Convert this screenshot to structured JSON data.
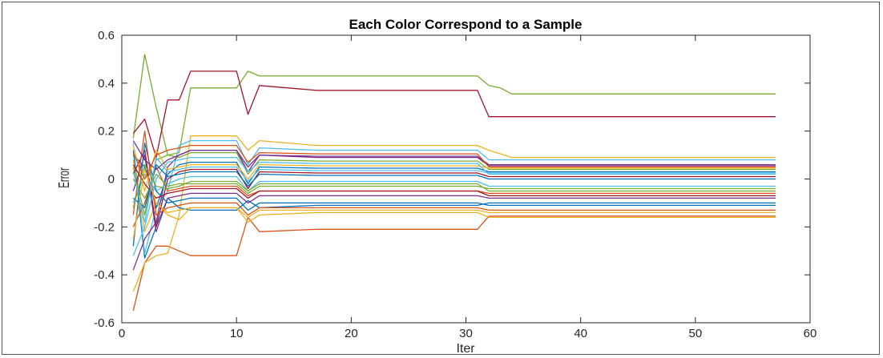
{
  "chart_data": {
    "type": "line",
    "title": "Each Color Correspond to a Sample",
    "xlabel": "Iter",
    "ylabel": "Error",
    "xlim": [
      0,
      60
    ],
    "ylim": [
      -0.6,
      0.6
    ],
    "xticks": [
      0,
      10,
      20,
      30,
      40,
      50,
      60
    ],
    "yticks": [
      -0.6,
      -0.4,
      -0.2,
      0,
      0.2,
      0.4,
      0.6
    ],
    "grid": false,
    "legend": "none",
    "axis_color": "#262626",
    "colors": [
      "#0072BD",
      "#D95319",
      "#EDB120",
      "#7E2F8E",
      "#77AC30",
      "#4DBEEE",
      "#A2142F"
    ],
    "series": [
      {
        "color": "#77AC30",
        "x": [
          1,
          2,
          3,
          4,
          5,
          6,
          10,
          11,
          12,
          17,
          31,
          32,
          33,
          34,
          57
        ],
        "y": [
          0.17,
          0.52,
          0.3,
          0.1,
          0.11,
          0.38,
          0.38,
          0.45,
          0.43,
          0.43,
          0.43,
          0.39,
          0.38,
          0.355,
          0.355
        ]
      },
      {
        "color": "#A2142F",
        "x": [
          1,
          2,
          3,
          4,
          5,
          6,
          10,
          11,
          12,
          17,
          31,
          32,
          57
        ],
        "y": [
          0.19,
          0.25,
          0.09,
          0.33,
          0.33,
          0.45,
          0.45,
          0.27,
          0.39,
          0.37,
          0.37,
          0.26,
          0.26
        ]
      },
      {
        "color": "#D95319",
        "x": [
          1,
          2,
          3,
          4,
          5,
          6,
          10,
          11,
          12,
          17,
          31,
          32,
          57
        ],
        "y": [
          -0.55,
          -0.35,
          -0.28,
          -0.28,
          -0.3,
          -0.32,
          -0.32,
          -0.16,
          -0.22,
          -0.21,
          -0.21,
          -0.155,
          -0.155
        ]
      },
      {
        "color": "#EDB120",
        "x": [
          1,
          2,
          3,
          4,
          5,
          6,
          10,
          11,
          12,
          17,
          31,
          32,
          34,
          57
        ],
        "y": [
          -0.47,
          -0.35,
          -0.32,
          -0.31,
          -0.15,
          0.18,
          0.18,
          0.12,
          0.16,
          0.14,
          0.14,
          0.12,
          0.09,
          0.09
        ]
      },
      {
        "color": "#0072BD",
        "x": [
          1,
          2,
          3,
          4,
          5,
          6,
          10,
          11,
          12,
          17,
          31,
          32,
          57
        ],
        "y": [
          0.12,
          -0.33,
          -0.2,
          -0.08,
          -0.12,
          -0.13,
          -0.13,
          -0.09,
          -0.12,
          -0.11,
          -0.11,
          -0.1,
          -0.1
        ]
      },
      {
        "color": "#4DBEEE",
        "x": [
          1,
          2,
          3,
          4,
          5,
          6,
          10,
          11,
          12,
          17,
          31,
          32,
          57
        ],
        "y": [
          0.15,
          -0.31,
          -0.12,
          -0.05,
          0.14,
          0.16,
          0.16,
          0.06,
          0.13,
          0.12,
          0.12,
          0.08,
          0.08
        ]
      },
      {
        "color": "#7E2F8E",
        "x": [
          1,
          2,
          3,
          4,
          5,
          6,
          10,
          11,
          12,
          17,
          31,
          32,
          57
        ],
        "y": [
          -0.38,
          -0.25,
          -0.18,
          0.05,
          0.1,
          0.12,
          0.12,
          0.03,
          0.1,
          0.09,
          0.09,
          0.055,
          0.055
        ]
      },
      {
        "color": "#EDB120",
        "x": [
          1,
          2,
          3,
          4,
          5,
          6,
          10,
          11,
          12,
          17,
          31,
          32,
          57
        ],
        "y": [
          0.08,
          -0.22,
          -0.1,
          -0.15,
          -0.17,
          -0.12,
          -0.12,
          -0.18,
          -0.15,
          -0.14,
          -0.14,
          -0.16,
          -0.16
        ]
      },
      {
        "color": "#0072BD",
        "x": [
          1,
          2,
          3,
          4,
          5,
          6,
          10,
          11,
          12,
          17,
          31,
          32,
          57
        ],
        "y": [
          0.1,
          0.05,
          -0.12,
          0.02,
          0.06,
          0.07,
          0.07,
          -0.02,
          0.05,
          0.045,
          0.045,
          0.03,
          0.03
        ]
      },
      {
        "color": "#D95319",
        "x": [
          1,
          2,
          3,
          4,
          5,
          6,
          10,
          11,
          12,
          17,
          31,
          32,
          57
        ],
        "y": [
          -0.2,
          -0.1,
          0.05,
          -0.05,
          -0.04,
          -0.03,
          -0.03,
          -0.07,
          -0.05,
          -0.05,
          -0.05,
          -0.06,
          -0.06
        ]
      },
      {
        "color": "#77AC30",
        "x": [
          1,
          2,
          3,
          4,
          5,
          6,
          10,
          11,
          12,
          17,
          31,
          32,
          57
        ],
        "y": [
          0.05,
          -0.15,
          0.08,
          0.1,
          0.09,
          0.11,
          0.11,
          0.02,
          0.08,
          0.075,
          0.075,
          0.04,
          0.04
        ]
      },
      {
        "color": "#4DBEEE",
        "x": [
          1,
          2,
          3,
          4,
          5,
          6,
          10,
          11,
          12,
          17,
          31,
          32,
          57
        ],
        "y": [
          -0.1,
          0.02,
          -0.05,
          -0.02,
          0.0,
          0.01,
          0.01,
          -0.05,
          -0.01,
          -0.01,
          -0.01,
          -0.03,
          -0.03
        ]
      },
      {
        "color": "#A2142F",
        "x": [
          1,
          2,
          3,
          4,
          5,
          6,
          10,
          11,
          12,
          17,
          31,
          32,
          57
        ],
        "y": [
          0.02,
          0.12,
          -0.2,
          0.0,
          0.03,
          0.04,
          0.04,
          -0.04,
          0.03,
          0.025,
          0.025,
          0.01,
          0.01
        ]
      },
      {
        "color": "#7E2F8E",
        "x": [
          1,
          2,
          3,
          4,
          5,
          6,
          10,
          11,
          12,
          17,
          31,
          32,
          57
        ],
        "y": [
          -0.05,
          0.1,
          -0.22,
          -0.08,
          -0.07,
          -0.06,
          -0.06,
          -0.1,
          -0.07,
          -0.07,
          -0.07,
          -0.08,
          -0.08
        ]
      },
      {
        "color": "#0072BD",
        "x": [
          1,
          2,
          3,
          4,
          5,
          6,
          10,
          11,
          12,
          17,
          31,
          32,
          57
        ],
        "y": [
          -0.28,
          0.15,
          -0.05,
          -0.1,
          -0.09,
          -0.08,
          -0.08,
          -0.13,
          -0.1,
          -0.1,
          -0.1,
          -0.11,
          -0.11
        ]
      },
      {
        "color": "#EDB120",
        "x": [
          1,
          2,
          3,
          4,
          5,
          6,
          10,
          11,
          12,
          17,
          31,
          32,
          57
        ],
        "y": [
          0.14,
          -0.05,
          0.12,
          0.04,
          0.05,
          0.06,
          0.06,
          0.0,
          0.06,
          0.055,
          0.055,
          0.045,
          0.045
        ]
      },
      {
        "color": "#D95319",
        "x": [
          1,
          2,
          3,
          4,
          5,
          6,
          10,
          11,
          12,
          17,
          31,
          32,
          57
        ],
        "y": [
          -0.15,
          0.2,
          -0.15,
          -0.12,
          -0.11,
          -0.1,
          -0.1,
          -0.15,
          -0.12,
          -0.12,
          -0.12,
          -0.13,
          -0.13
        ]
      },
      {
        "color": "#77AC30",
        "x": [
          1,
          2,
          3,
          4,
          5,
          6,
          10,
          11,
          12,
          17,
          31,
          32,
          57
        ],
        "y": [
          0.0,
          -0.08,
          0.02,
          -0.03,
          -0.02,
          -0.02,
          -0.02,
          -0.06,
          -0.03,
          -0.03,
          -0.03,
          -0.04,
          -0.04
        ]
      },
      {
        "color": "#4DBEEE",
        "x": [
          1,
          2,
          3,
          4,
          5,
          6,
          10,
          11,
          12,
          17,
          31,
          32,
          57
        ],
        "y": [
          -0.32,
          -0.2,
          0.0,
          0.07,
          0.08,
          0.09,
          0.09,
          0.03,
          0.07,
          0.065,
          0.065,
          0.02,
          0.02
        ]
      },
      {
        "color": "#A2142F",
        "x": [
          1,
          2,
          3,
          4,
          5,
          6,
          10,
          11,
          12,
          17,
          31,
          32,
          57
        ],
        "y": [
          0.06,
          -0.02,
          -0.08,
          -0.06,
          -0.05,
          -0.04,
          -0.04,
          -0.08,
          -0.05,
          -0.05,
          -0.05,
          -0.07,
          -0.07
        ]
      },
      {
        "color": "#7E2F8E",
        "x": [
          1,
          2,
          3,
          4,
          5,
          6,
          10,
          11,
          12,
          17,
          31,
          32,
          57
        ],
        "y": [
          0.16,
          0.08,
          0.04,
          0.08,
          0.1,
          0.12,
          0.12,
          0.05,
          0.1,
          0.095,
          0.095,
          0.06,
          0.06
        ]
      },
      {
        "color": "#0072BD",
        "x": [
          1,
          2,
          3,
          4,
          5,
          6,
          10,
          11,
          12,
          17,
          31,
          32,
          57
        ],
        "y": [
          -0.08,
          -0.12,
          0.06,
          0.01,
          0.02,
          0.03,
          0.03,
          -0.03,
          0.02,
          0.015,
          0.015,
          0.0,
          0.0
        ]
      },
      {
        "color": "#EDB120",
        "x": [
          1,
          2,
          3,
          4,
          5,
          6,
          10,
          11,
          12,
          17,
          31,
          32,
          57
        ],
        "y": [
          -0.25,
          0.04,
          -0.1,
          -0.14,
          -0.13,
          -0.12,
          -0.12,
          -0.16,
          -0.13,
          -0.13,
          -0.13,
          -0.14,
          -0.14
        ]
      },
      {
        "color": "#D95319",
        "x": [
          1,
          2,
          3,
          4,
          5,
          6,
          10,
          11,
          12,
          17,
          31,
          32,
          57
        ],
        "y": [
          0.11,
          0.0,
          0.1,
          0.12,
          0.13,
          0.14,
          0.14,
          0.07,
          0.11,
          0.105,
          0.105,
          0.05,
          0.05
        ]
      },
      {
        "color": "#77AC30",
        "x": [
          1,
          2,
          3,
          4,
          5,
          6,
          10,
          11,
          12,
          17,
          31,
          32,
          57
        ],
        "y": [
          -0.12,
          0.06,
          -0.03,
          -0.04,
          -0.03,
          -0.01,
          -0.01,
          -0.05,
          -0.02,
          -0.02,
          -0.02,
          -0.05,
          -0.05
        ]
      },
      {
        "color": "#4DBEEE",
        "x": [
          1,
          2,
          3,
          4,
          5,
          6,
          10,
          11,
          12,
          17,
          31,
          32,
          57
        ],
        "y": [
          0.03,
          -0.18,
          0.09,
          0.03,
          0.04,
          0.05,
          0.05,
          -0.01,
          0.04,
          0.035,
          0.035,
          0.025,
          0.025
        ]
      }
    ]
  }
}
